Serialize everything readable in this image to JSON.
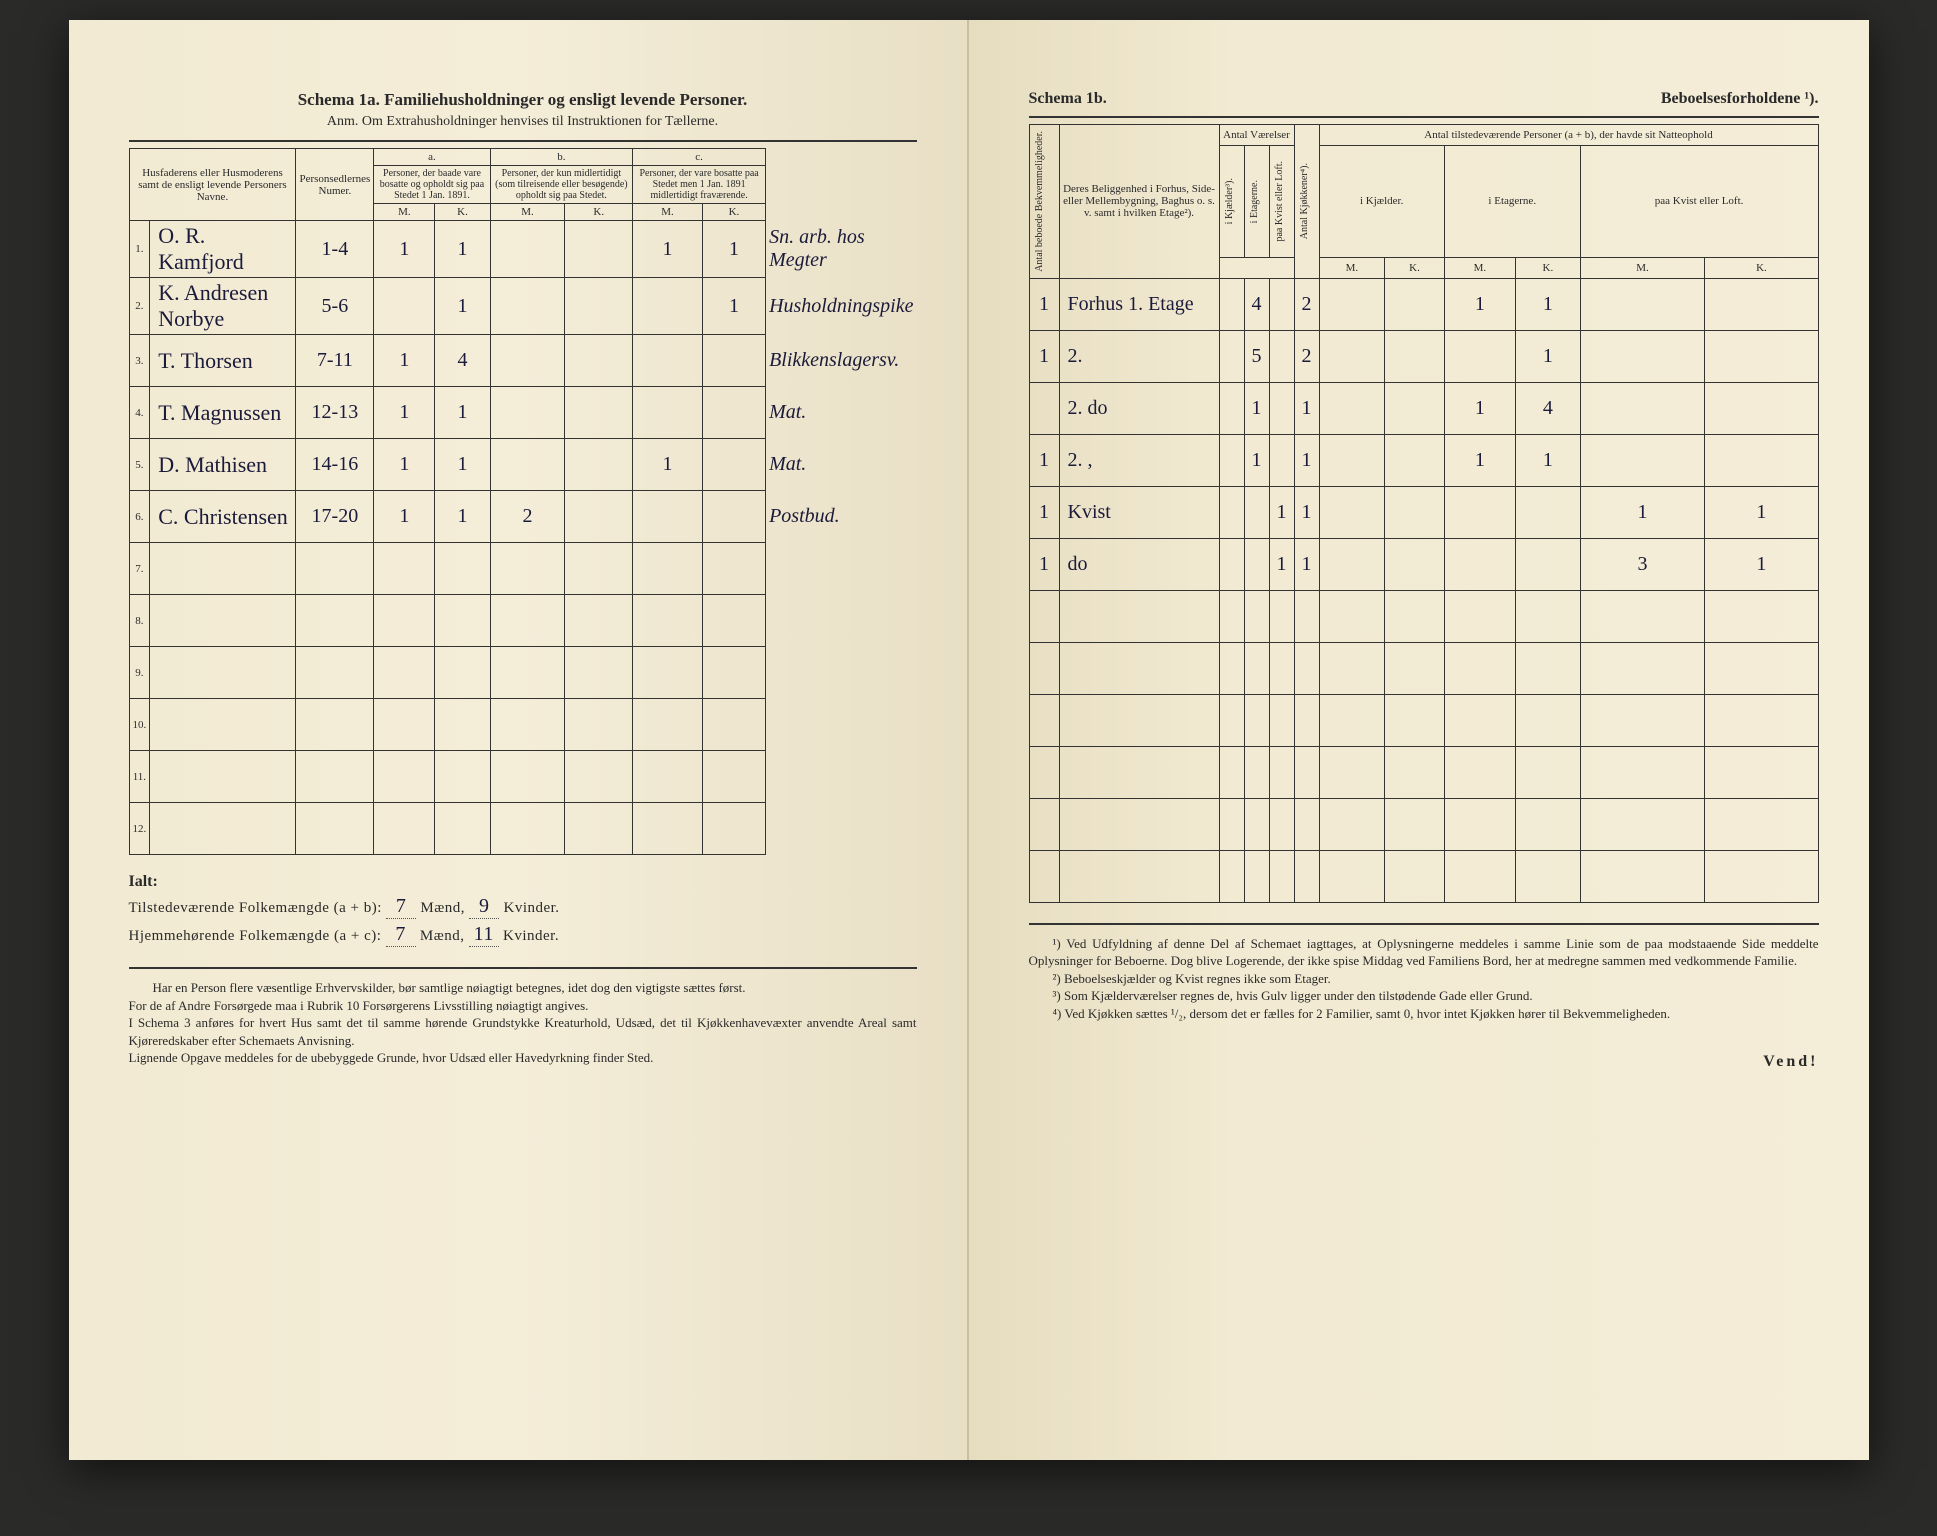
{
  "left": {
    "title": "Schema 1a.  Familiehusholdninger og ensligt levende Personer.",
    "note": "Anm.  Om Extrahusholdninger henvises til Instruktionen for Tællerne.",
    "headers": {
      "col1": "Husfaderens eller Husmoderens samt de ensligt levende Personers Navne.",
      "col2": "Personsedlernes Numer.",
      "a_label": "a.",
      "a_text": "Personer, der baade vare bosatte og opholdt sig paa Stedet 1 Jan. 1891.",
      "b_label": "b.",
      "b_text": "Personer, der kun midlertidigt (som tilreisende eller besøgende) opholdt sig paa Stedet.",
      "c_label": "c.",
      "c_text": "Personer, der vare bosatte paa Stedet men 1 Jan. 1891 midlertidigt fraværende.",
      "m": "M.",
      "k": "K."
    },
    "rows": [
      {
        "n": "1",
        "name": "O. R. Kamfjord",
        "nums": "1-4",
        "aM": "1",
        "aK": "1",
        "bM": "",
        "bK": "",
        "cM": "1",
        "cK": "1",
        "note": "Sn. arb. hos Megter"
      },
      {
        "n": "2",
        "name": "K. Andresen Norbye",
        "nums": "5-6",
        "aM": "",
        "aK": "1",
        "bM": "",
        "bK": "",
        "cM": "",
        "cK": "1",
        "note": "Husholdningspike"
      },
      {
        "n": "3",
        "name": "T. Thorsen",
        "nums": "7-11",
        "aM": "1",
        "aK": "4",
        "bM": "",
        "bK": "",
        "cM": "",
        "cK": "",
        "note": "Blikkenslagersv."
      },
      {
        "n": "4",
        "name": "T. Magnussen",
        "nums": "12-13",
        "aM": "1",
        "aK": "1",
        "bM": "",
        "bK": "",
        "cM": "",
        "cK": "",
        "note": "Mat."
      },
      {
        "n": "5",
        "name": "D. Mathisen",
        "nums": "14-16",
        "aM": "1",
        "aK": "1",
        "bM": "",
        "bK": "",
        "cM": "1",
        "cK": "",
        "note": "Mat."
      },
      {
        "n": "6",
        "name": "C. Christensen",
        "nums": "17-20",
        "aM": "1",
        "aK": "1",
        "bM": "2",
        "bK": "",
        "cM": "",
        "cK": "",
        "note": "Postbud."
      }
    ],
    "blank_rows": [
      "7.",
      "8.",
      "9.",
      "10.",
      "11.",
      "12."
    ],
    "ialt": "Ialt:",
    "summary1_label": "Tilstedeværende Folkemængde (a + b):",
    "summary1_m": "7",
    "summary1_k": "9",
    "summary2_label": "Hjemmehørende Folkemængde (a + c):",
    "summary2_m": "7",
    "summary2_k": "11",
    "maend": "Mænd,",
    "kvinder": "Kvinder.",
    "foot": "Har en Person flere væsentlige Erhvervskilder, bør samtlige nøiagtigt betegnes, idet dog den vigtigste sættes først.\n  For de af Andre Forsørgede maa i Rubrik 10 Forsørgerens Livsstilling nøiagtigt angives.\n  I Schema 3 anføres for hvert Hus samt det til samme hørende Grundstykke Kreaturhold, Udsæd, det til Kjøkkenhavevæxter anvendte Areal samt Kjøreredskaber efter Schemaets Anvisning.\n  Lignende Opgave meddeles for de ubebyggede Grunde, hvor Udsæd eller Havedyrkning finder Sted."
  },
  "right": {
    "title_left": "Schema 1b.",
    "title_right": "Beboelsesforholdene ¹).",
    "headers": {
      "bekv": "Antal beboede Bekvemmeligheder.",
      "belig": "Deres Beliggenhed i Forhus, Side- eller Mellembygning, Baghus o. s. v. samt i hvilken Etage²).",
      "vaer": "Antal Værelser",
      "kjael": "i Kjælder³).",
      "etag": "i Etagerne.",
      "kvist": "paa Kvist eller Loft.",
      "kjok": "Antal Kjøkkener⁴).",
      "tilst": "Antal tilstedeværende Personer (a + b), der havde sit Natteophold",
      "t_kjael": "i Kjælder.",
      "t_etag": "i Etagerne.",
      "t_kvist": "paa Kvist eller Loft.",
      "m": "M.",
      "k": "K."
    },
    "rows": [
      {
        "bekv": "1",
        "belig": "Forhus 1. Etage",
        "kj": "",
        "et": "4",
        "kv": "",
        "kjok": "2",
        "tkM": "",
        "tkK": "",
        "teM": "1",
        "teK": "1",
        "tvM": "",
        "tvK": ""
      },
      {
        "bekv": "1",
        "belig": "2.",
        "kj": "",
        "et": "5",
        "kv": "",
        "kjok": "2",
        "tkM": "",
        "tkK": "",
        "teM": "",
        "teK": "1",
        "tvM": "",
        "tvK": ""
      },
      {
        "bekv": "",
        "belig": "2. do",
        "kj": "",
        "et": "1",
        "kv": "",
        "kjok": "1",
        "tkM": "",
        "tkK": "",
        "teM": "1",
        "teK": "4",
        "tvM": "",
        "tvK": ""
      },
      {
        "bekv": "1",
        "belig": "2. ,",
        "kj": "",
        "et": "1",
        "kv": "",
        "kjok": "1",
        "tkM": "",
        "tkK": "",
        "teM": "1",
        "teK": "1",
        "tvM": "",
        "tvK": ""
      },
      {
        "bekv": "1",
        "belig": "Kvist",
        "kj": "",
        "et": "",
        "kv": "1",
        "kjok": "1",
        "tkM": "",
        "tkK": "",
        "teM": "",
        "teK": "",
        "tvM": "1",
        "tvK": "1"
      },
      {
        "bekv": "1",
        "belig": "do",
        "kj": "",
        "et": "",
        "kv": "1",
        "kjok": "1",
        "tkM": "",
        "tkK": "",
        "teM": "",
        "teK": "",
        "tvM": "3",
        "tvK": "1"
      }
    ],
    "foot1": "¹) Ved Udfyldning af denne Del af Schemaet iagttages, at Oplysningerne meddeles i samme Linie som de paa modstaaende Side meddelte Oplysninger for Beboerne. Dog blive Logerende, der ikke spise Middag ved Familiens Bord, her at medregne sammen med vedkommende Familie.",
    "foot2": "²) Beboelseskjælder og Kvist regnes ikke som Etager.",
    "foot3": "³) Som Kjælderværelser regnes de, hvis Gulv ligger under den tilstødende Gade eller Grund.",
    "foot4": "⁴) Ved Kjøkken sættes ¹/₂, dersom det er fælles for 2 Familier, samt 0, hvor intet Kjøkken hører til Bekvemmeligheden.",
    "vend": "Vend!"
  }
}
